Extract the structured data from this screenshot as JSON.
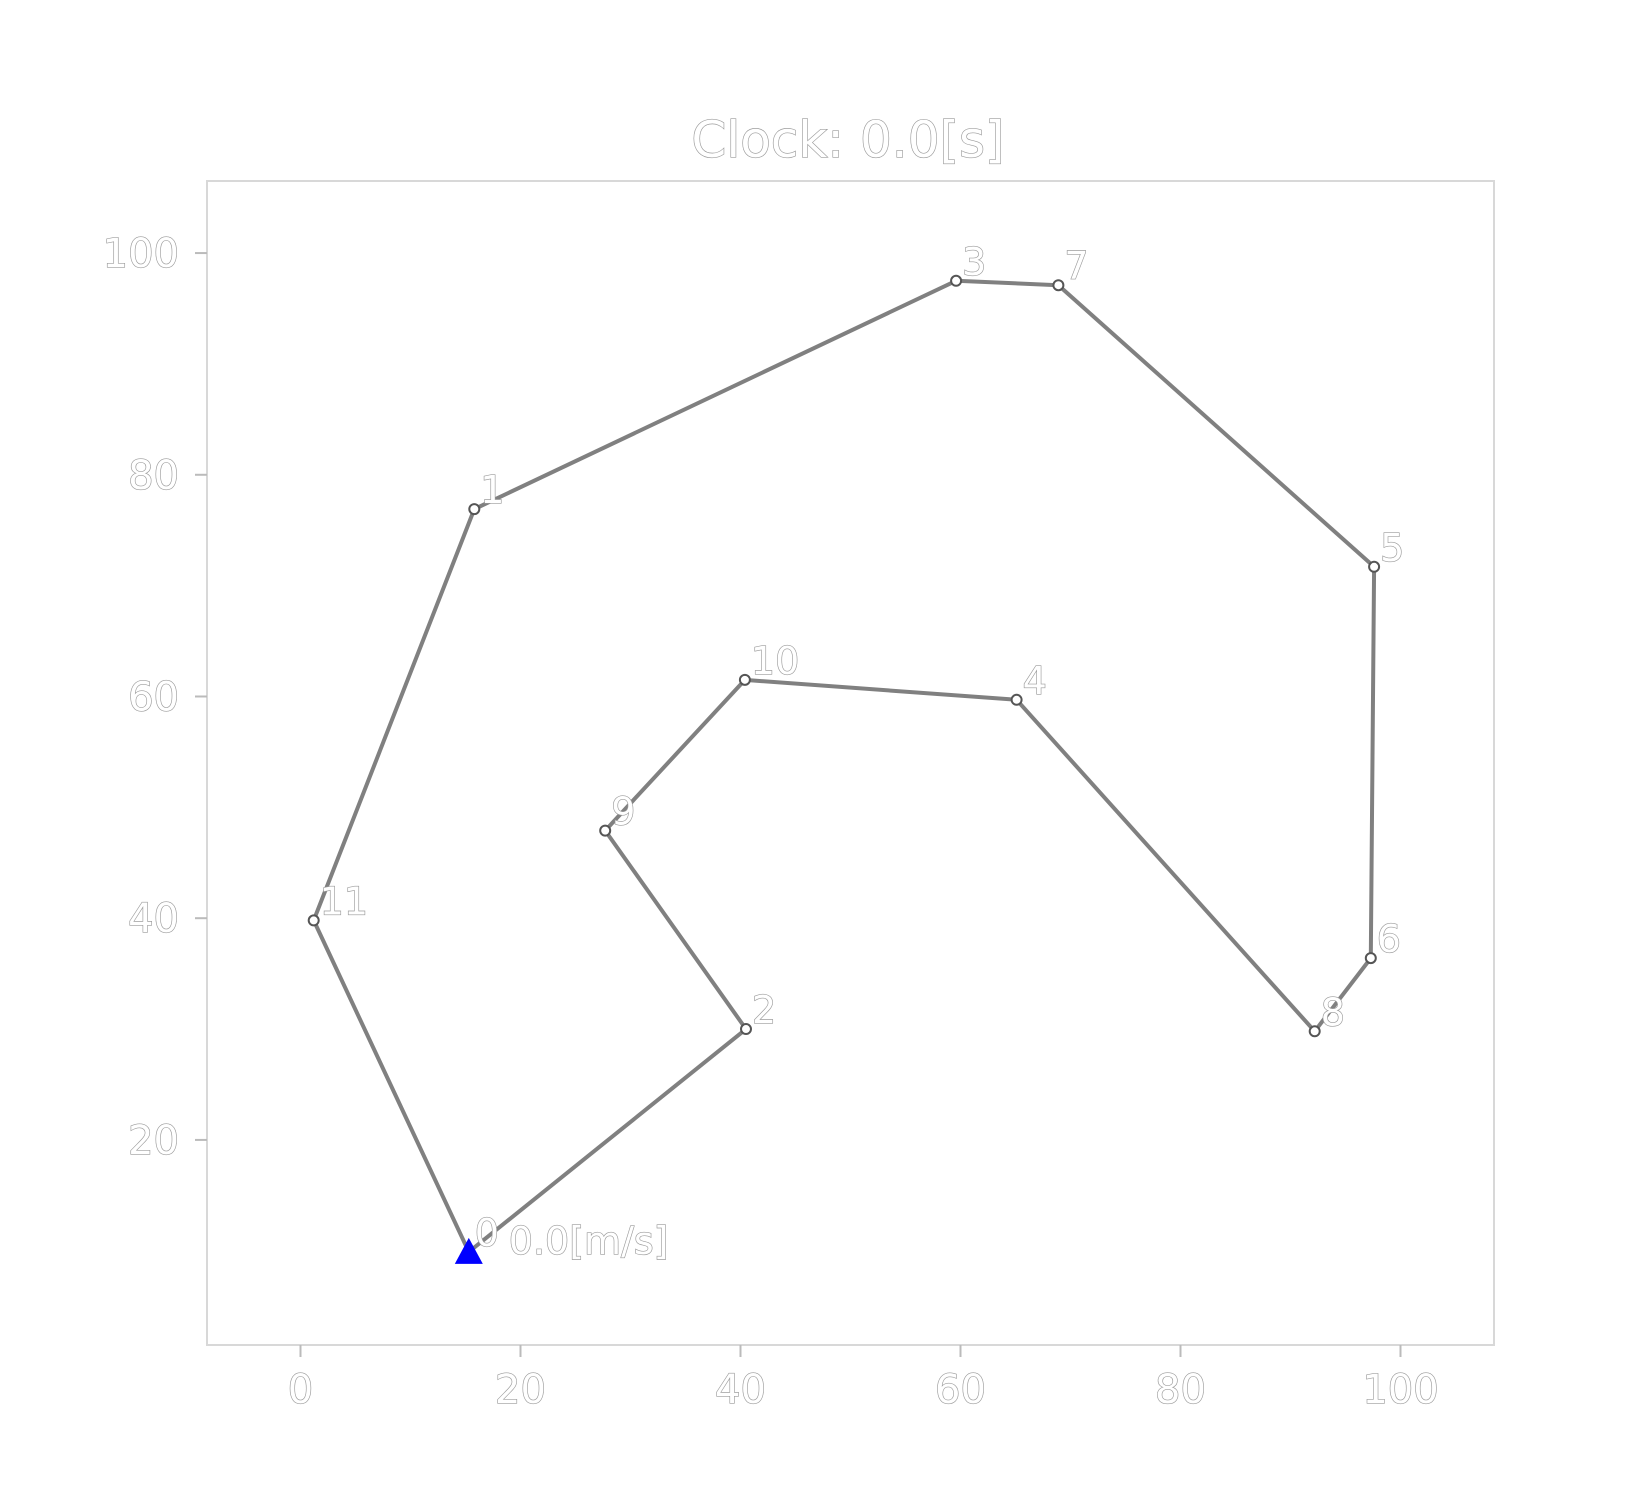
{
  "chart_data": {
    "type": "line",
    "title": "Clock: 0.0[s]",
    "xlabel": "",
    "ylabel": "",
    "xlim": [
      -8.5,
      108.5
    ],
    "ylim": [
      1.5,
      106.5
    ],
    "x_ticks": [
      0,
      20,
      40,
      60,
      80,
      100
    ],
    "y_ticks": [
      20,
      40,
      60,
      80,
      100
    ],
    "x_tick_labels": [
      "0",
      "20",
      "40",
      "60",
      "80",
      "100"
    ],
    "y_tick_labels": [
      "20",
      "40",
      "60",
      "80",
      "100"
    ],
    "grid": false,
    "line_color": "#808080",
    "vehicle_color": "#0000ff",
    "nodes": [
      {
        "label": "0",
        "x": 15.3,
        "y": 9.9
      },
      {
        "label": "1",
        "x": 15.8,
        "y": 76.9
      },
      {
        "label": "2",
        "x": 40.5,
        "y": 30.0
      },
      {
        "label": "3",
        "x": 59.6,
        "y": 97.5
      },
      {
        "label": "4",
        "x": 65.1,
        "y": 59.7
      },
      {
        "label": "5",
        "x": 97.6,
        "y": 71.7
      },
      {
        "label": "6",
        "x": 97.3,
        "y": 36.4
      },
      {
        "label": "7",
        "x": 68.9,
        "y": 97.1
      },
      {
        "label": "8",
        "x": 92.2,
        "y": 29.8
      },
      {
        "label": "9",
        "x": 27.7,
        "y": 47.9
      },
      {
        "label": "10",
        "x": 40.4,
        "y": 61.5
      },
      {
        "label": "11",
        "x": 1.2,
        "y": 39.8
      }
    ],
    "route": [
      0,
      11,
      1,
      3,
      7,
      5,
      6,
      8,
      4,
      10,
      9,
      2,
      0
    ],
    "vehicle": {
      "x": 15.3,
      "y": 9.9,
      "label": "0.0[m/s]"
    }
  }
}
